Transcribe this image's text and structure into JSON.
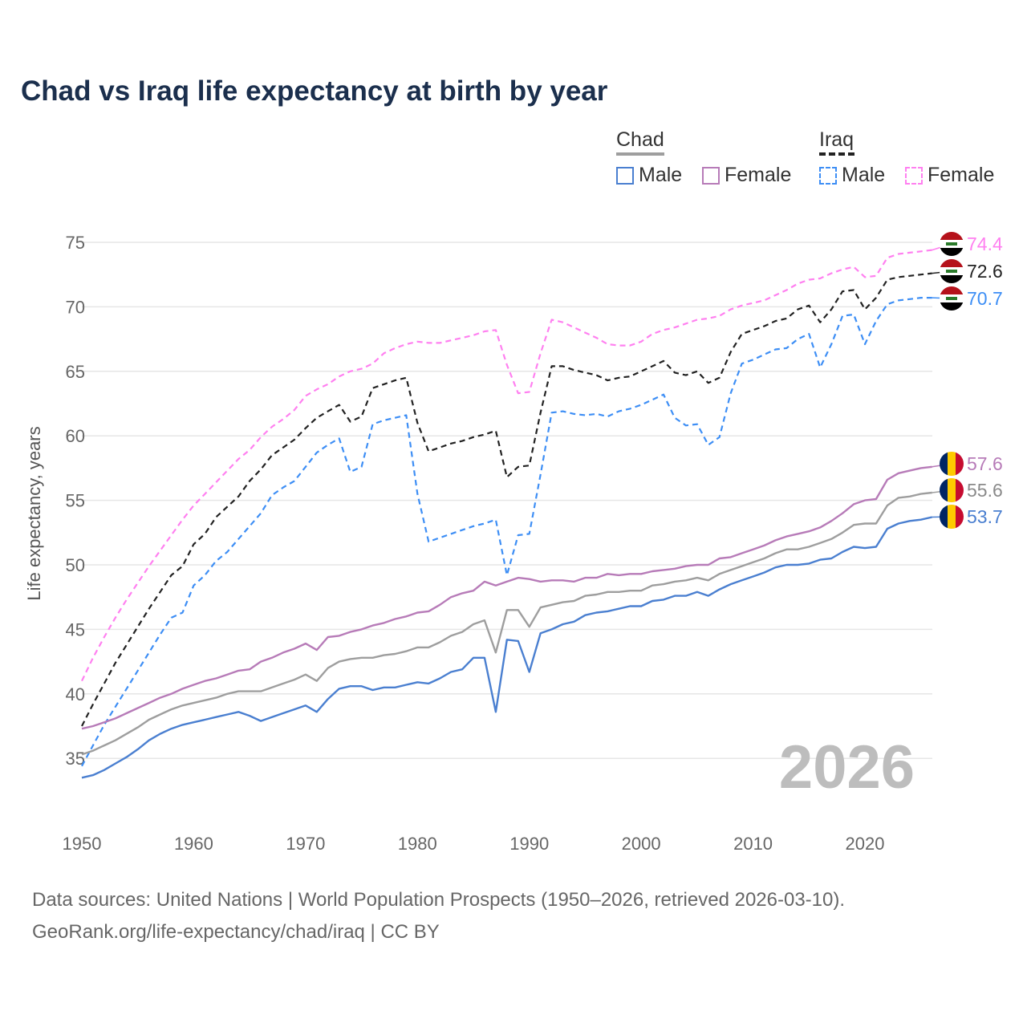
{
  "title": "Chad vs Iraq life expectancy at birth by year",
  "legend": {
    "groups": [
      {
        "name": "Chad",
        "items": [
          "Male",
          "Female"
        ]
      },
      {
        "name": "Iraq",
        "items": [
          "Male",
          "Female"
        ]
      }
    ]
  },
  "footer": {
    "line1": "Data sources: United Nations | World Population Prospects (1950–2026, retrieved 2026-03-10).",
    "line2": "GeoRank.org/life-expectancy/chad/iraq | CC BY"
  },
  "chart_data": {
    "type": "line",
    "title": "Chad vs Iraq life expectancy at birth by year",
    "xlabel": "",
    "ylabel": "Life expectancy, years",
    "xlim": [
      1950,
      2026
    ],
    "ylim": [
      32,
      77
    ],
    "x_ticks": [
      "1950",
      "1960",
      "1970",
      "1980",
      "1990",
      "2000",
      "2010",
      "2020"
    ],
    "y_ticks": [
      "35",
      "40",
      "45",
      "50",
      "55",
      "60",
      "65",
      "70",
      "75"
    ],
    "grid": true,
    "year_watermark": "2026",
    "x_start": 1950,
    "series": [
      {
        "name": "Iraq Female",
        "country": "Iraq",
        "flag": "iraq",
        "color": "#ff80f0",
        "dashed": true,
        "end_label": "74.4",
        "values": [
          41.0,
          42.8,
          44.4,
          45.9,
          47.3,
          48.6,
          49.9,
          51.1,
          52.3,
          53.5,
          54.6,
          55.5,
          56.4,
          57.3,
          58.2,
          58.9,
          59.9,
          60.7,
          61.3,
          62.0,
          63.1,
          63.6,
          64.0,
          64.6,
          65.0,
          65.2,
          65.6,
          66.4,
          66.8,
          67.1,
          67.3,
          67.2,
          67.2,
          67.4,
          67.6,
          67.8,
          68.1,
          68.2,
          65.5,
          63.3,
          63.4,
          66.4,
          69.0,
          68.8,
          68.4,
          68.0,
          67.6,
          67.1,
          67.0,
          67.0,
          67.3,
          67.9,
          68.2,
          68.4,
          68.7,
          69.0,
          69.1,
          69.3,
          69.8,
          70.1,
          70.3,
          70.5,
          70.9,
          71.3,
          71.8,
          72.1,
          72.2,
          72.6,
          72.9,
          73.1,
          72.3,
          72.4,
          73.8,
          74.1,
          74.2,
          74.3,
          74.4
        ]
      },
      {
        "name": "Iraq",
        "country": "Iraq",
        "flag": "iraq",
        "color": "#222222",
        "dashed": true,
        "end_label": "72.6",
        "values": [
          37.5,
          39.2,
          40.8,
          42.4,
          43.8,
          45.2,
          46.6,
          47.9,
          49.2,
          49.9,
          51.6,
          52.4,
          53.7,
          54.5,
          55.3,
          56.5,
          57.4,
          58.5,
          59.1,
          59.7,
          60.6,
          61.4,
          61.9,
          62.4,
          61.1,
          61.5,
          63.7,
          64.0,
          64.3,
          64.5,
          61.0,
          58.8,
          59.1,
          59.4,
          59.6,
          59.9,
          60.1,
          60.4,
          56.8,
          57.6,
          57.7,
          61.8,
          65.4,
          65.4,
          65.1,
          64.9,
          64.7,
          64.3,
          64.5,
          64.6,
          65.0,
          65.4,
          65.8,
          64.9,
          64.7,
          65.0,
          64.1,
          64.5,
          66.5,
          67.9,
          68.2,
          68.5,
          68.9,
          69.1,
          69.8,
          70.1,
          68.8,
          69.8,
          71.2,
          71.3,
          69.8,
          70.7,
          72.1,
          72.3,
          72.4,
          72.5,
          72.6
        ]
      },
      {
        "name": "Iraq Male",
        "country": "Iraq",
        "flag": "iraq",
        "color": "#3d8ef5",
        "dashed": true,
        "end_label": "70.7",
        "values": [
          34.4,
          36.0,
          37.6,
          39.0,
          40.4,
          41.8,
          43.2,
          44.6,
          45.9,
          46.3,
          48.4,
          49.2,
          50.3,
          51.0,
          52.0,
          53.0,
          54.0,
          55.4,
          56.0,
          56.5,
          57.6,
          58.7,
          59.3,
          59.8,
          57.2,
          57.6,
          60.9,
          61.2,
          61.4,
          61.6,
          55.5,
          51.8,
          52.1,
          52.4,
          52.7,
          53.0,
          53.2,
          53.5,
          49.2,
          52.3,
          52.4,
          57.0,
          61.8,
          61.9,
          61.7,
          61.6,
          61.7,
          61.5,
          61.9,
          62.1,
          62.4,
          62.8,
          63.2,
          61.4,
          60.8,
          60.9,
          59.3,
          59.9,
          63.3,
          65.6,
          65.9,
          66.3,
          66.7,
          66.8,
          67.5,
          67.9,
          65.3,
          67.1,
          69.3,
          69.4,
          67.1,
          68.9,
          70.2,
          70.5,
          70.6,
          70.7,
          70.7
        ]
      },
      {
        "name": "Chad Female",
        "country": "Chad",
        "flag": "chad",
        "color": "#b77bb8",
        "dashed": false,
        "end_label": "57.6",
        "values": [
          37.3,
          37.5,
          37.8,
          38.1,
          38.5,
          38.9,
          39.3,
          39.7,
          40.0,
          40.4,
          40.7,
          41.0,
          41.2,
          41.5,
          41.8,
          41.9,
          42.5,
          42.8,
          43.2,
          43.5,
          43.9,
          43.4,
          44.4,
          44.5,
          44.8,
          45.0,
          45.3,
          45.5,
          45.8,
          46.0,
          46.3,
          46.4,
          46.9,
          47.5,
          47.8,
          48.0,
          48.7,
          48.4,
          48.7,
          49.0,
          48.9,
          48.7,
          48.8,
          48.8,
          48.7,
          49.0,
          49.0,
          49.3,
          49.2,
          49.3,
          49.3,
          49.5,
          49.6,
          49.7,
          49.9,
          50.0,
          50.0,
          50.5,
          50.6,
          50.9,
          51.2,
          51.5,
          51.9,
          52.2,
          52.4,
          52.6,
          52.9,
          53.4,
          54.0,
          54.7,
          55.0,
          55.1,
          56.6,
          57.1,
          57.3,
          57.5,
          57.6
        ]
      },
      {
        "name": "Chad",
        "country": "Chad",
        "flag": "chad",
        "color": "#9e9e9e",
        "dashed": false,
        "end_label": "55.6",
        "values": [
          35.3,
          35.6,
          36.0,
          36.4,
          36.9,
          37.4,
          38.0,
          38.4,
          38.8,
          39.1,
          39.3,
          39.5,
          39.7,
          40.0,
          40.2,
          40.2,
          40.2,
          40.5,
          40.8,
          41.1,
          41.5,
          41.0,
          42.0,
          42.5,
          42.7,
          42.8,
          42.8,
          43.0,
          43.1,
          43.3,
          43.6,
          43.6,
          44.0,
          44.5,
          44.8,
          45.4,
          45.7,
          43.2,
          46.5,
          46.5,
          45.2,
          46.7,
          46.9,
          47.1,
          47.2,
          47.6,
          47.7,
          47.9,
          47.9,
          48.0,
          48.0,
          48.4,
          48.5,
          48.7,
          48.8,
          49.0,
          48.8,
          49.3,
          49.6,
          49.9,
          50.2,
          50.5,
          50.9,
          51.2,
          51.2,
          51.4,
          51.7,
          52.0,
          52.5,
          53.1,
          53.2,
          53.2,
          54.6,
          55.2,
          55.3,
          55.5,
          55.6
        ]
      },
      {
        "name": "Chad Male",
        "country": "Chad",
        "flag": "chad",
        "color": "#4a7fd0",
        "dashed": false,
        "end_label": "53.7",
        "values": [
          33.5,
          33.7,
          34.1,
          34.6,
          35.1,
          35.7,
          36.4,
          36.9,
          37.3,
          37.6,
          37.8,
          38.0,
          38.2,
          38.4,
          38.6,
          38.3,
          37.9,
          38.2,
          38.5,
          38.8,
          39.1,
          38.6,
          39.6,
          40.4,
          40.6,
          40.6,
          40.3,
          40.5,
          40.5,
          40.7,
          40.9,
          40.8,
          41.2,
          41.7,
          41.9,
          42.8,
          42.8,
          38.6,
          44.2,
          44.1,
          41.7,
          44.7,
          45.0,
          45.4,
          45.6,
          46.1,
          46.3,
          46.4,
          46.6,
          46.8,
          46.8,
          47.2,
          47.3,
          47.6,
          47.6,
          47.9,
          47.6,
          48.1,
          48.5,
          48.8,
          49.1,
          49.4,
          49.8,
          50.0,
          50.0,
          50.1,
          50.4,
          50.5,
          51.0,
          51.4,
          51.3,
          51.4,
          52.8,
          53.2,
          53.4,
          53.5,
          53.7
        ]
      }
    ]
  }
}
